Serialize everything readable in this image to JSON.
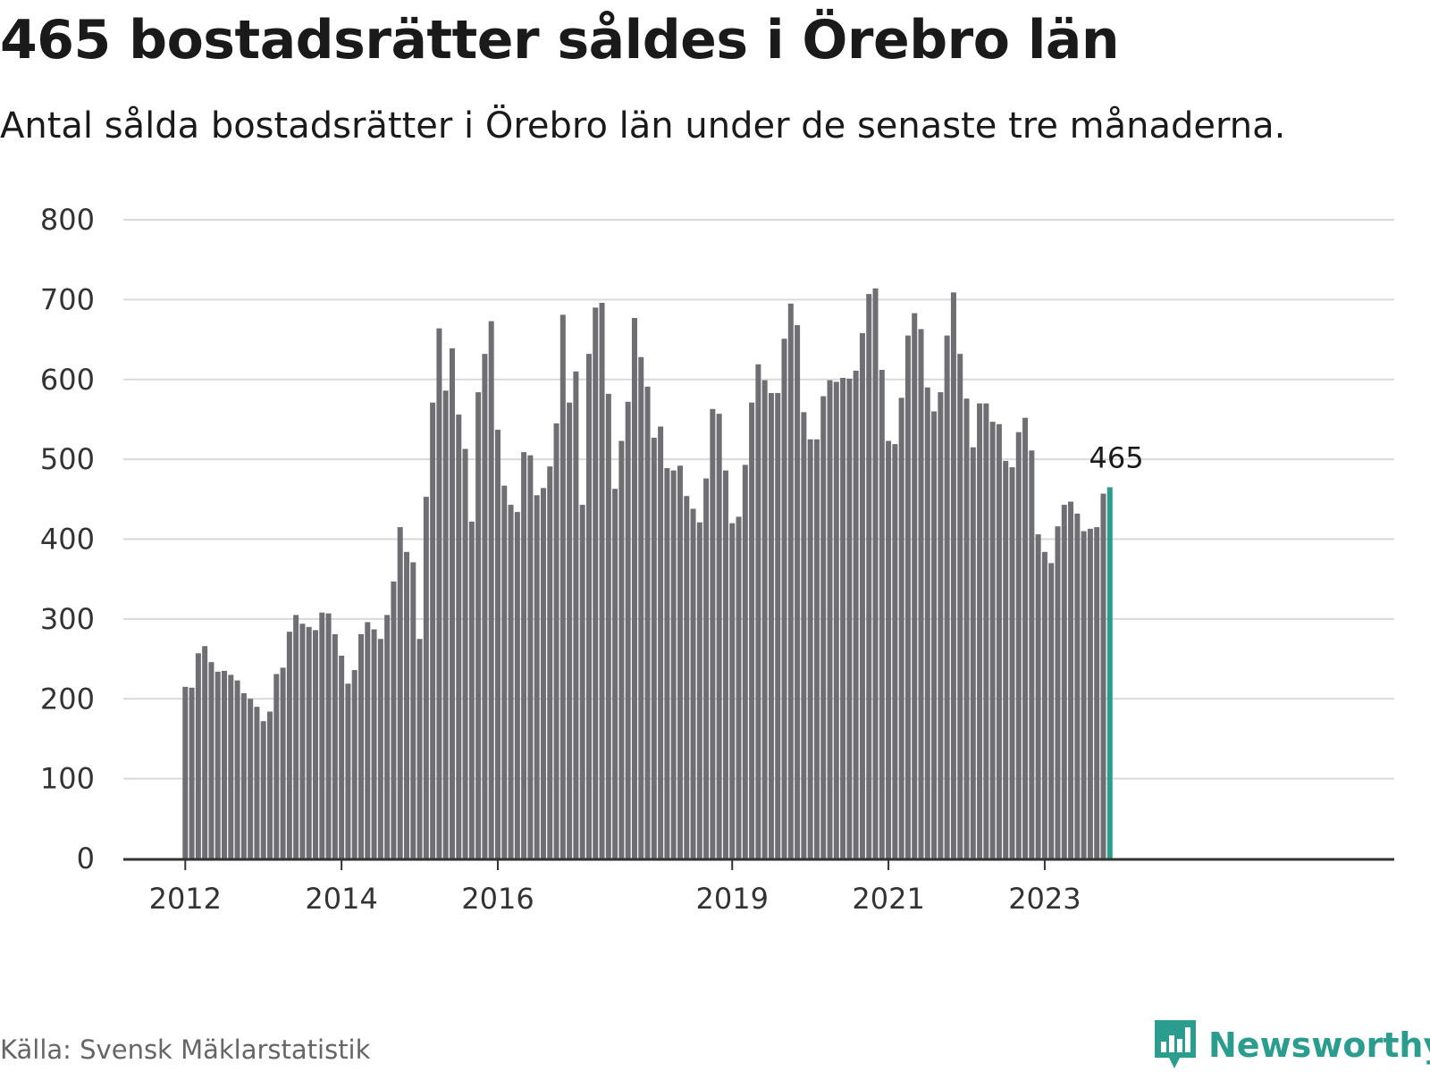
{
  "header": {
    "title": "465 bostadsrätter såldes i Örebro län",
    "subtitle": "Antal sålda bostadsrätter i Örebro län under de senaste tre månaderna."
  },
  "footer": {
    "source": "Källa: Svensk Mäklarstatistik",
    "brand": "Newsworthy",
    "brand_icon": "newsworthy-logo-icon"
  },
  "colors": {
    "bar": "#6e6e73",
    "highlight": "#2a9d8f",
    "grid": "#d9d9d9",
    "axis": "#333333"
  },
  "chart_data": {
    "type": "bar",
    "title": "465 bostadsrätter såldes i Örebro län",
    "subtitle": "Antal sålda bostadsrätter i Örebro län under de senaste tre månaderna.",
    "xlabel": "",
    "ylabel": "",
    "ylim": [
      0,
      800
    ],
    "y_ticks": [
      0,
      100,
      200,
      300,
      400,
      500,
      600,
      700,
      800
    ],
    "x_ticks": [
      {
        "label": "2012",
        "x": "2012-01"
      },
      {
        "label": "2014",
        "x": "2014-01"
      },
      {
        "label": "2016",
        "x": "2016-01"
      },
      {
        "label": "2019",
        "x": "2019-01"
      },
      {
        "label": "2021",
        "x": "2021-01"
      },
      {
        "label": "2023",
        "x": "2023-01"
      }
    ],
    "grid": true,
    "x_start": "2012-01",
    "highlight_last": true,
    "data_labels": [
      {
        "x": "2023-12",
        "value": 465,
        "text": "465"
      }
    ],
    "values": [
      215,
      214,
      257,
      266,
      246,
      234,
      235,
      230,
      223,
      207,
      200,
      190,
      172,
      184,
      231,
      239,
      284,
      305,
      294,
      290,
      286,
      308,
      307,
      281,
      254,
      219,
      236,
      281,
      296,
      287,
      275,
      305,
      347,
      415,
      384,
      371,
      275,
      453,
      571,
      664,
      586,
      639,
      556,
      513,
      422,
      584,
      632,
      673,
      537,
      467,
      443,
      434,
      509,
      505,
      455,
      464,
      491,
      545,
      681,
      571,
      610,
      443,
      632,
      690,
      696,
      582,
      463,
      523,
      572,
      677,
      628,
      591,
      527,
      541,
      489,
      486,
      492,
      454,
      438,
      421,
      476,
      563,
      557,
      486,
      420,
      428,
      493,
      571,
      619,
      599,
      583,
      583,
      651,
      695,
      668,
      559,
      525,
      525,
      579,
      599,
      597,
      602,
      601,
      611,
      658,
      707,
      714,
      612,
      523,
      519,
      577,
      655,
      683,
      663,
      590,
      560,
      584,
      655,
      709,
      632,
      576,
      515,
      570,
      570,
      547,
      544,
      498,
      490,
      534,
      552,
      511,
      406,
      384,
      370,
      416,
      443,
      447,
      432,
      410,
      413,
      415,
      457,
      465
    ]
  }
}
